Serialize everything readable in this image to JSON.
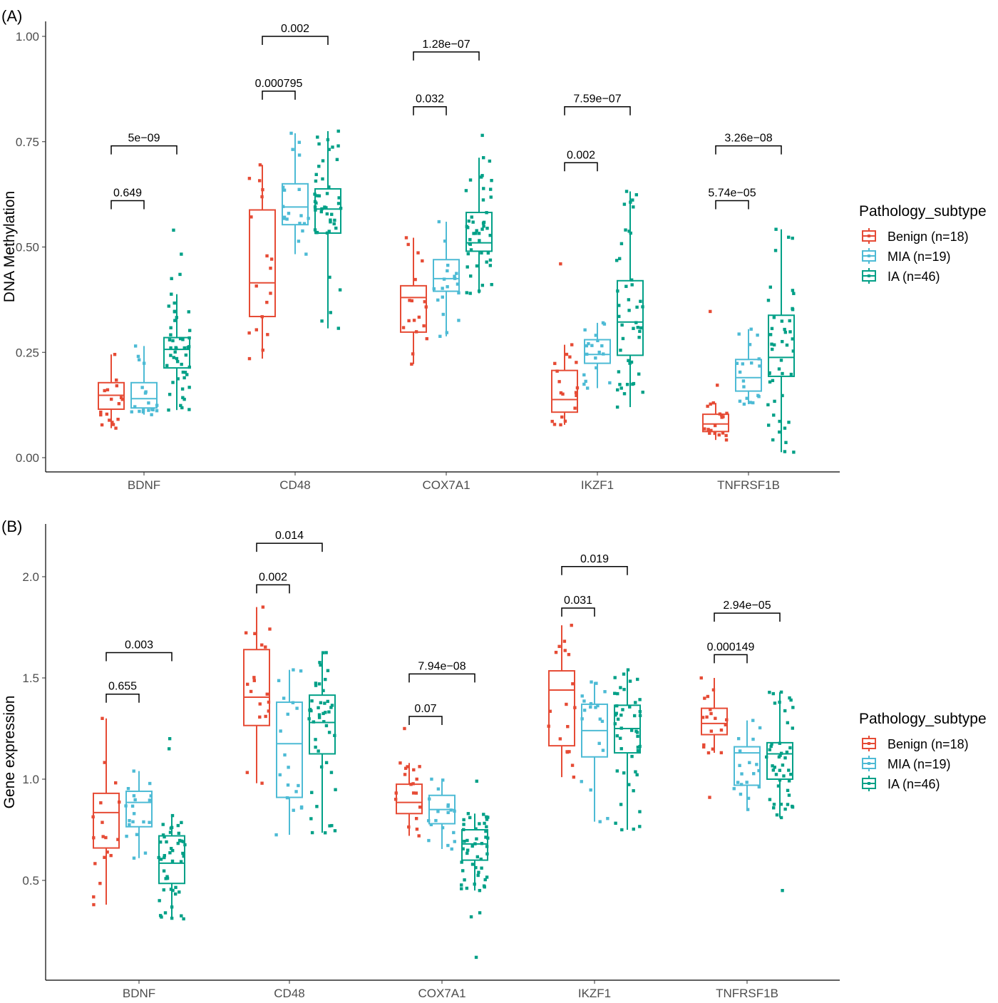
{
  "legend": {
    "title": "Pathology_subtype",
    "entries": [
      {
        "key": "Benign",
        "label": "Benign (n=18)",
        "color": "#E64B35"
      },
      {
        "key": "MIA",
        "label": "MIA (n=19)",
        "color": "#4DBBD5"
      },
      {
        "key": "IA",
        "label": "IA (n=46)",
        "color": "#00A087"
      }
    ]
  },
  "chart_data": [
    {
      "panel": "(A)",
      "type": "box",
      "ylabel": "DNA Methylation",
      "ylim": [
        0,
        1
      ],
      "yticks": [
        0.0,
        0.25,
        0.5,
        0.75,
        1.0
      ],
      "ytick_labels": [
        "0.00",
        "0.25",
        "0.50",
        "0.75",
        "1.00"
      ],
      "categories": [
        "BDNF",
        "CD48",
        "COX7A1",
        "IKZF1",
        "TNFRSF1B"
      ],
      "groups": [
        "Benign",
        "MIA",
        "IA"
      ],
      "series": [
        {
          "name": "Benign (n=18)",
          "boxes": [
            {
              "min": 0.07,
              "q1": 0.115,
              "median": 0.148,
              "q3": 0.178,
              "max": 0.245
            },
            {
              "min": 0.235,
              "q1": 0.335,
              "median": 0.415,
              "q3": 0.588,
              "max": 0.695
            },
            {
              "min": 0.222,
              "q1": 0.298,
              "median": 0.38,
              "q3": 0.408,
              "max": 0.522
            },
            {
              "min": 0.078,
              "q1": 0.108,
              "median": 0.138,
              "q3": 0.207,
              "max": 0.268
            },
            {
              "min": 0.042,
              "q1": 0.062,
              "median": 0.08,
              "q3": 0.103,
              "max": 0.13
            }
          ]
        },
        {
          "name": "MIA (n=19)",
          "boxes": [
            {
              "min": 0.102,
              "q1": 0.118,
              "median": 0.14,
              "q3": 0.178,
              "max": 0.265
            },
            {
              "min": 0.483,
              "q1": 0.553,
              "median": 0.595,
              "q3": 0.65,
              "max": 0.77
            },
            {
              "min": 0.288,
              "q1": 0.395,
              "median": 0.425,
              "q3": 0.47,
              "max": 0.56
            },
            {
              "min": 0.165,
              "q1": 0.224,
              "median": 0.245,
              "q3": 0.28,
              "max": 0.32
            },
            {
              "min": 0.127,
              "q1": 0.158,
              "median": 0.19,
              "q3": 0.233,
              "max": 0.305
            }
          ]
        },
        {
          "name": "IA (n=46)",
          "boxes": [
            {
              "min": 0.113,
              "q1": 0.213,
              "median": 0.257,
              "q3": 0.285,
              "max": 0.388
            },
            {
              "min": 0.307,
              "q1": 0.533,
              "median": 0.59,
              "q3": 0.638,
              "max": 0.775
            },
            {
              "min": 0.39,
              "q1": 0.49,
              "median": 0.51,
              "q3": 0.582,
              "max": 0.712
            },
            {
              "min": 0.12,
              "q1": 0.243,
              "median": 0.322,
              "q3": 0.42,
              "max": 0.632
            },
            {
              "min": 0.013,
              "q1": 0.193,
              "median": 0.238,
              "q3": 0.338,
              "max": 0.542
            }
          ]
        }
      ],
      "outliers": [
        {
          "category": "BDNF",
          "group": "IA",
          "values": [
            0.54,
            0.483,
            0.435,
            0.425
          ]
        },
        {
          "category": "COX7A1",
          "group": "IA",
          "values": [
            0.765
          ]
        },
        {
          "category": "IKZF1",
          "group": "Benign",
          "values": [
            0.46
          ]
        },
        {
          "category": "TNFRSF1B",
          "group": "Benign",
          "values": [
            0.347,
            0.172
          ]
        }
      ],
      "comparisons": [
        {
          "category": "BDNF",
          "groups": [
            "Benign",
            "MIA"
          ],
          "p": "0.649",
          "y": 0.61
        },
        {
          "category": "BDNF",
          "groups": [
            "Benign",
            "IA"
          ],
          "p": "5e−09",
          "y": 0.74
        },
        {
          "category": "CD48",
          "groups": [
            "Benign",
            "MIA"
          ],
          "p": "0.000795",
          "y": 0.87
        },
        {
          "category": "CD48",
          "groups": [
            "Benign",
            "IA"
          ],
          "p": "0.002",
          "y": 1.0
        },
        {
          "category": "COX7A1",
          "groups": [
            "Benign",
            "MIA"
          ],
          "p": "0.032",
          "y": 0.833
        },
        {
          "category": "COX7A1",
          "groups": [
            "Benign",
            "IA"
          ],
          "p": "1.28e−07",
          "y": 0.963
        },
        {
          "category": "IKZF1",
          "groups": [
            "Benign",
            "MIA"
          ],
          "p": "0.002",
          "y": 0.7
        },
        {
          "category": "IKZF1",
          "groups": [
            "Benign",
            "IA"
          ],
          "p": "7.59e−07",
          "y": 0.833
        },
        {
          "category": "TNFRSF1B",
          "groups": [
            "Benign",
            "MIA"
          ],
          "p": "5.74e−05",
          "y": 0.61
        },
        {
          "category": "TNFRSF1B",
          "groups": [
            "Benign",
            "IA"
          ],
          "p": "3.26e−08",
          "y": 0.74
        }
      ]
    },
    {
      "panel": "(B)",
      "type": "box",
      "ylabel": "Gene expression",
      "ylim": [
        0.0,
        2.0
      ],
      "yticks": [
        0.5,
        1.0,
        1.5,
        2.0
      ],
      "ytick_labels": [
        "0.5",
        "1.0",
        "1.5",
        "2.0"
      ],
      "categories": [
        "BDNF",
        "CD48",
        "COX7A1",
        "IKZF1",
        "TNFRSF1B"
      ],
      "groups": [
        "Benign",
        "MIA",
        "IA"
      ],
      "series": [
        {
          "name": "Benign (n=18)",
          "boxes": [
            {
              "min": 0.38,
              "q1": 0.66,
              "median": 0.835,
              "q3": 0.93,
              "max": 1.3
            },
            {
              "min": 0.98,
              "q1": 1.265,
              "median": 1.405,
              "q3": 1.64,
              "max": 1.85
            },
            {
              "min": 0.72,
              "q1": 0.83,
              "median": 0.885,
              "q3": 0.975,
              "max": 1.08
            },
            {
              "min": 1.01,
              "q1": 1.165,
              "median": 1.44,
              "q3": 1.535,
              "max": 1.76
            },
            {
              "min": 1.13,
              "q1": 1.22,
              "median": 1.275,
              "q3": 1.35,
              "max": 1.5
            }
          ]
        },
        {
          "name": "MIA (n=19)",
          "boxes": [
            {
              "min": 0.61,
              "q1": 0.765,
              "median": 0.885,
              "q3": 0.94,
              "max": 1.04
            },
            {
              "min": 0.725,
              "q1": 0.91,
              "median": 1.175,
              "q3": 1.38,
              "max": 1.54
            },
            {
              "min": 0.655,
              "q1": 0.78,
              "median": 0.85,
              "q3": 0.92,
              "max": 1.0
            },
            {
              "min": 0.79,
              "q1": 1.11,
              "median": 1.24,
              "q3": 1.37,
              "max": 1.48
            },
            {
              "min": 0.85,
              "q1": 0.97,
              "median": 1.13,
              "q3": 1.16,
              "max": 1.29
            }
          ]
        },
        {
          "name": "IA (n=46)",
          "boxes": [
            {
              "min": 0.31,
              "q1": 0.485,
              "median": 0.585,
              "q3": 0.72,
              "max": 0.82
            },
            {
              "min": 0.735,
              "q1": 1.125,
              "median": 1.28,
              "q3": 1.415,
              "max": 1.625
            },
            {
              "min": 0.45,
              "q1": 0.6,
              "median": 0.68,
              "q3": 0.75,
              "max": 0.83
            },
            {
              "min": 0.75,
              "q1": 1.13,
              "median": 1.25,
              "q3": 1.365,
              "max": 1.54
            },
            {
              "min": 0.81,
              "q1": 1.0,
              "median": 1.125,
              "q3": 1.18,
              "max": 1.43
            }
          ]
        }
      ],
      "outliers": [
        {
          "category": "BDNF",
          "group": "IA",
          "values": [
            1.2,
            1.15
          ]
        },
        {
          "category": "COX7A1",
          "group": "Benign",
          "values": [
            1.25
          ]
        },
        {
          "category": "COX7A1",
          "group": "IA",
          "values": [
            0.99,
            0.34,
            0.32,
            0.12
          ]
        },
        {
          "category": "TNFRSF1B",
          "group": "Benign",
          "values": [
            0.91
          ]
        },
        {
          "category": "TNFRSF1B",
          "group": "IA",
          "values": [
            0.45
          ]
        }
      ],
      "comparisons": [
        {
          "category": "BDNF",
          "groups": [
            "Benign",
            "MIA"
          ],
          "p": "0.655",
          "y": 1.42
        },
        {
          "category": "BDNF",
          "groups": [
            "Benign",
            "IA"
          ],
          "p": "0.003",
          "y": 1.625
        },
        {
          "category": "CD48",
          "groups": [
            "Benign",
            "MIA"
          ],
          "p": "0.002",
          "y": 1.96
        },
        {
          "category": "CD48",
          "groups": [
            "Benign",
            "IA"
          ],
          "p": "0.014",
          "y": 2.165
        },
        {
          "category": "COX7A1",
          "groups": [
            "Benign",
            "MIA"
          ],
          "p": "0.07",
          "y": 1.31
        },
        {
          "category": "COX7A1",
          "groups": [
            "Benign",
            "IA"
          ],
          "p": "7.94e−08",
          "y": 1.52
        },
        {
          "category": "IKZF1",
          "groups": [
            "Benign",
            "MIA"
          ],
          "p": "0.031",
          "y": 1.845
        },
        {
          "category": "IKZF1",
          "groups": [
            "Benign",
            "IA"
          ],
          "p": "0.019",
          "y": 2.05
        },
        {
          "category": "TNFRSF1B",
          "groups": [
            "Benign",
            "MIA"
          ],
          "p": "0.000149",
          "y": 1.615
        },
        {
          "category": "TNFRSF1B",
          "groups": [
            "Benign",
            "IA"
          ],
          "p": "2.94e−05",
          "y": 1.82
        }
      ]
    }
  ]
}
